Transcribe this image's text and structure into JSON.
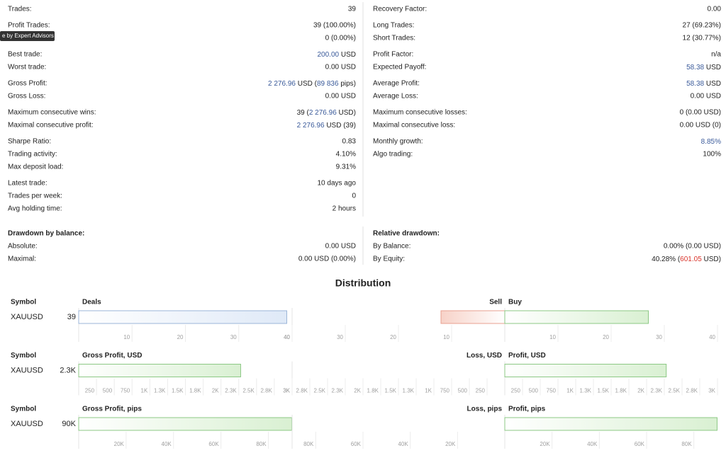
{
  "tooltip": "e by Expert Advisors",
  "stats": {
    "left": [
      [
        {
          "label": "Trades:",
          "value": "39"
        }
      ],
      [
        {
          "label": "Profit Trades:",
          "value": "39 (100.00%)"
        },
        {
          "label": null,
          "value": "0 (0.00%)"
        }
      ],
      [
        {
          "label": "Best trade:",
          "value": [
            {
              "text": "200.00",
              "color": "#3a5a9a"
            },
            " USD"
          ]
        },
        {
          "label": "Worst trade:",
          "value": "0.00 USD"
        }
      ],
      [
        {
          "label": "Gross Profit:",
          "value": [
            {
              "text": "2 276.96",
              "color": "#3a5a9a"
            },
            " USD (",
            {
              "text": "89 836",
              "color": "#3a5a9a"
            },
            " pips)"
          ]
        },
        {
          "label": "Gross Loss:",
          "value": "0.00 USD"
        }
      ],
      [
        {
          "label": "Maximum consecutive wins:",
          "value": [
            "39 (",
            {
              "text": "2 276.96",
              "color": "#3a5a9a"
            },
            " USD)"
          ]
        },
        {
          "label": "Maximal consecutive profit:",
          "value": [
            {
              "text": "2 276.96",
              "color": "#3a5a9a"
            },
            " USD (39)"
          ]
        }
      ],
      [
        {
          "label": "Sharpe Ratio:",
          "value": "0.83"
        },
        {
          "label": "Trading activity:",
          "value": "4.10%"
        },
        {
          "label": "Max deposit load:",
          "value": "9.31%"
        }
      ],
      [
        {
          "label": "Latest trade:",
          "value": "10 days ago"
        },
        {
          "label": "Trades per week:",
          "value": "0"
        },
        {
          "label": "Avg holding time:",
          "value": "2 hours"
        }
      ]
    ],
    "right": [
      [
        {
          "label": "Recovery Factor:",
          "value": "0.00"
        }
      ],
      [
        {
          "label": "Long Trades:",
          "value": "27 (69.23%)"
        },
        {
          "label": "Short Trades:",
          "value": "12 (30.77%)"
        }
      ],
      [
        {
          "label": "Profit Factor:",
          "value": "n/a"
        },
        {
          "label": "Expected Payoff:",
          "value": [
            {
              "text": "58.38",
              "color": "#3a5a9a"
            },
            " USD"
          ]
        }
      ],
      [
        {
          "label": "Average Profit:",
          "value": [
            {
              "text": "58.38",
              "color": "#3a5a9a"
            },
            " USD"
          ]
        },
        {
          "label": "Average Loss:",
          "value": "0.00 USD"
        }
      ],
      [
        {
          "label": "Maximum consecutive losses:",
          "value": "0 (0.00 USD)"
        },
        {
          "label": "Maximal consecutive loss:",
          "value": "0.00 USD (0)"
        }
      ],
      [
        {
          "label": "Monthly growth:",
          "value": [
            {
              "text": "8.85%",
              "color": "#3a5a9a"
            }
          ]
        },
        {
          "label": "Algo trading:",
          "value": "100%"
        }
      ]
    ]
  },
  "drawdown": {
    "left": {
      "title": "Drawdown by balance:",
      "rows": [
        {
          "label": "Absolute:",
          "value": "0.00 USD"
        },
        {
          "label": "Maximal:",
          "value": "0.00 USD (0.00%)"
        }
      ]
    },
    "right": {
      "title": "Relative drawdown:",
      "rows": [
        {
          "label": "By Balance:",
          "value": "0.00% (0.00 USD)"
        },
        {
          "label": "By Equity:",
          "value": [
            "40.28% (",
            {
              "text": "601.05",
              "color": "#d9342b"
            },
            " USD)"
          ]
        }
      ]
    }
  },
  "distribution": {
    "title": "Distribution",
    "rows": [
      {
        "symbol_header": "Symbol",
        "symbol": "XAUUSD",
        "total": 39,
        "title": "Deals",
        "values": [
          39
        ],
        "color": "#9bb5d8",
        "fill": "#dfe9f7",
        "xlim": [
          0,
          40
        ],
        "xticks": [
          10,
          20,
          30,
          40
        ],
        "left_title": "Sell",
        "left_values": [
          12
        ],
        "left_color": "#e8a090",
        "left_fill": "#f7d2c8",
        "left_xlim": [
          40,
          0
        ],
        "left_xticks": [
          40,
          30,
          20,
          10
        ],
        "right_title": "Buy",
        "right_values": [
          27
        ],
        "right_color": "#8cc884",
        "right_fill": "#d9f0d2",
        "right_xlim": [
          0,
          40
        ],
        "right_xticks": [
          10,
          20,
          30,
          40
        ]
      },
      {
        "symbol_header": "Symbol",
        "symbol": "XAUUSD",
        "total": "2.3K",
        "title": "Gross Profit, USD",
        "values": [
          2276.96
        ],
        "color": "#8cc884",
        "fill": "#d9f0d2",
        "xlim": [
          0,
          3000
        ],
        "xticks": [
          250,
          500,
          750,
          {
            "value": 1000,
            "label": "1K"
          },
          {
            "value": 1250,
            "label": "1.3K"
          },
          {
            "value": 1500,
            "label": "1.5K"
          },
          {
            "value": 1750,
            "label": "1.8K"
          },
          {
            "value": 2000,
            "label": "2K"
          },
          {
            "value": 2250,
            "label": "2.3K"
          },
          {
            "value": 2500,
            "label": "2.5K"
          },
          {
            "value": 2750,
            "label": "2.8K"
          },
          {
            "value": 3000,
            "label": "3K"
          }
        ],
        "left_title": "Loss, USD",
        "left_values": [
          0
        ],
        "left_color": "#e8a090",
        "left_fill": "#f7d2c8",
        "left_xlim": [
          3000,
          0
        ],
        "left_xticks": [
          {
            "value": 3000,
            "label": "3K"
          },
          {
            "value": 2750,
            "label": "2.8K"
          },
          {
            "value": 2500,
            "label": "2.5K"
          },
          {
            "value": 2250,
            "label": "2.3K"
          },
          {
            "value": 2000,
            "label": "2K"
          },
          {
            "value": 1750,
            "label": "1.8K"
          },
          {
            "value": 1500,
            "label": "1.5K"
          },
          {
            "value": 1250,
            "label": "1.3K"
          },
          {
            "value": 1000,
            "label": "1K"
          },
          750,
          500,
          250
        ],
        "right_title": "Profit, USD",
        "right_values": [
          2276.96
        ],
        "right_color": "#8cc884",
        "right_fill": "#d9f0d2",
        "right_xlim": [
          0,
          3000
        ],
        "right_xticks": [
          250,
          500,
          750,
          {
            "value": 1000,
            "label": "1K"
          },
          {
            "value": 1250,
            "label": "1.3K"
          },
          {
            "value": 1500,
            "label": "1.5K"
          },
          {
            "value": 1750,
            "label": "1.8K"
          },
          {
            "value": 2000,
            "label": "2K"
          },
          {
            "value": 2250,
            "label": "2.3K"
          },
          {
            "value": 2500,
            "label": "2.5K"
          },
          {
            "value": 2750,
            "label": "2.8K"
          },
          {
            "value": 3000,
            "label": "3K"
          }
        ]
      },
      {
        "symbol_header": "Symbol",
        "symbol": "XAUUSD",
        "total": "90K",
        "title": "Gross Profit, pips",
        "values": [
          89836
        ],
        "color": "#8cc884",
        "fill": "#d9f0d2",
        "xlim": [
          0,
          90000
        ],
        "xticks": [
          {
            "value": 20000,
            "label": "20K"
          },
          {
            "value": 40000,
            "label": "40K"
          },
          {
            "value": 60000,
            "label": "60K"
          },
          {
            "value": 80000,
            "label": "80K"
          }
        ],
        "left_title": "Loss, pips",
        "left_values": [
          0
        ],
        "left_color": "#e8a090",
        "left_fill": "#f7d2c8",
        "left_xlim": [
          90000,
          0
        ],
        "left_xticks": [
          {
            "value": 80000,
            "label": "80K"
          },
          {
            "value": 60000,
            "label": "60K"
          },
          {
            "value": 40000,
            "label": "40K"
          },
          {
            "value": 20000,
            "label": "20K"
          }
        ],
        "right_title": "Profit, pips",
        "right_values": [
          89836
        ],
        "right_color": "#8cc884",
        "right_fill": "#d9f0d2",
        "right_xlim": [
          0,
          90000
        ],
        "right_xticks": [
          {
            "value": 20000,
            "label": "20K"
          },
          {
            "value": 40000,
            "label": "40K"
          },
          {
            "value": 60000,
            "label": "60K"
          },
          {
            "value": 80000,
            "label": "80K"
          }
        ]
      }
    ]
  }
}
